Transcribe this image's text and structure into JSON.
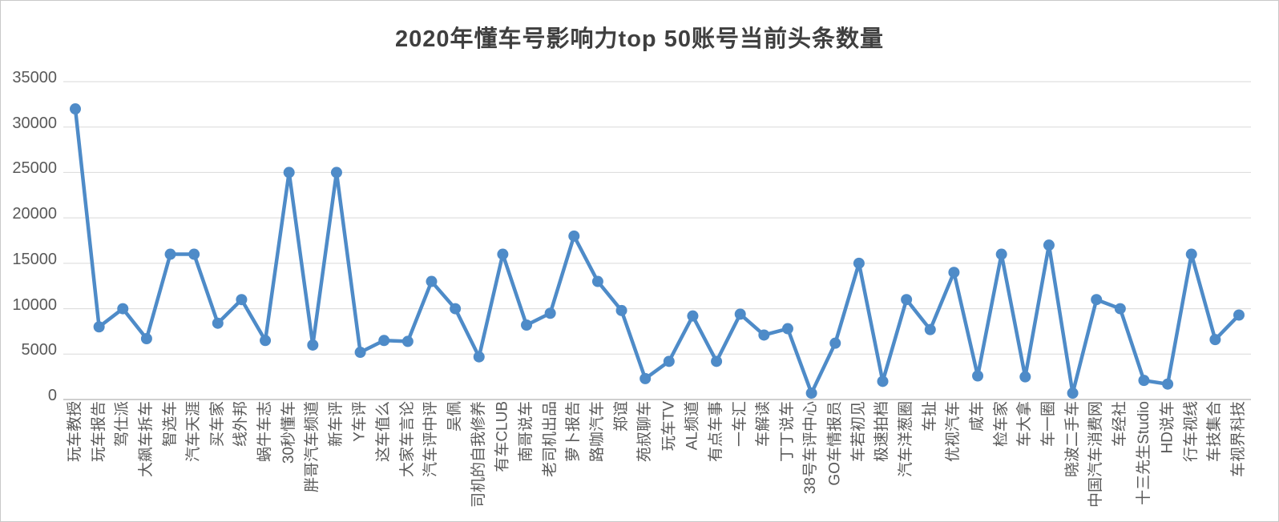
{
  "chart_data": {
    "type": "line",
    "title": "2020年懂车号影响力top 50账号当前头条数量",
    "categories": [
      "玩车教授",
      "玩车报告",
      "驾仕派",
      "大飙车拆车",
      "智选车",
      "汽车天涯",
      "买车家",
      "线外邦",
      "蜗牛车志",
      "30秒懂车",
      "胖哥汽车频道",
      "新车评",
      "Y车评",
      "这车值么",
      "大家车言论",
      "汽车评中评",
      "吴佩",
      "司机的自我修养",
      "有车CLUB",
      "南哥说车",
      "老司机出品",
      "萝卜报告",
      "路咖汽车",
      "郑谊",
      "苑叔聊车",
      "玩车TV",
      "AL频道",
      "有点车事",
      "一车汇",
      "车解读",
      "丁丁说车",
      "38号车评中心",
      "GO车情报员",
      "车若初见",
      "极速拍档",
      "汽车洋葱圈",
      "车扯",
      "优视汽车",
      "咸车",
      "检车家",
      "车大拿",
      "车一圈",
      "晓波二手车",
      "中国汽车消费网",
      "车经社",
      "十三先生Studio",
      "HD说车",
      "行车视线",
      "车技集合",
      "车视界科技"
    ],
    "values": [
      32000,
      8000,
      10000,
      6700,
      16000,
      16000,
      8400,
      11000,
      6500,
      25000,
      6000,
      25000,
      5200,
      6500,
      6400,
      13000,
      10000,
      4700,
      16000,
      8200,
      9500,
      18000,
      13000,
      9800,
      2300,
      4200,
      9200,
      4200,
      9400,
      7100,
      7800,
      700,
      6200,
      15000,
      2000,
      11000,
      7700,
      14000,
      2600,
      16000,
      2500,
      17000,
      700,
      11000,
      10000,
      2100,
      1700,
      16000,
      6600,
      9300
    ],
    "xlabel": "",
    "ylabel": "",
    "ylim": [
      0,
      35000
    ],
    "yticks": [
      0,
      5000,
      10000,
      15000,
      20000,
      25000,
      30000,
      35000
    ],
    "grid": true,
    "legend_position": "none",
    "line_color": "#4e8bc8",
    "marker": "circle",
    "gridline_color": "#d9d9d9",
    "axisline_color": "#bfbfbf",
    "tick_label_color": "#595959",
    "title_color": "#3f3f3f"
  }
}
